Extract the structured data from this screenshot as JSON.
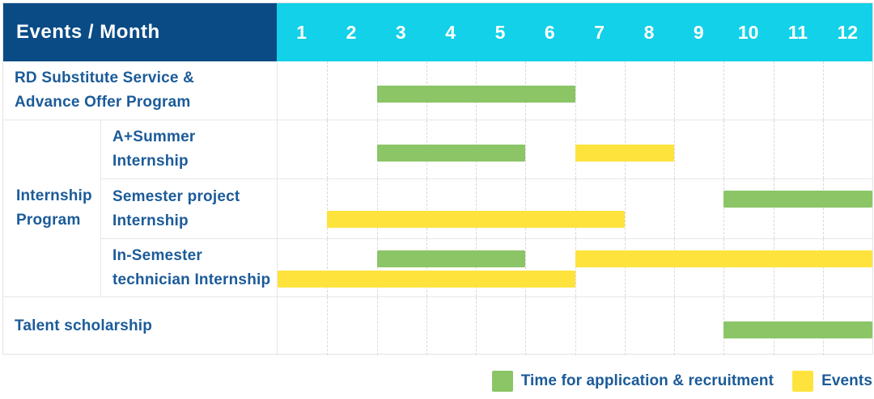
{
  "table": {
    "header_label": "Events / Month",
    "months": [
      "1",
      "2",
      "3",
      "4",
      "5",
      "6",
      "7",
      "8",
      "9",
      "10",
      "11",
      "12"
    ],
    "row_labels": {
      "rd_substitute": "RD Substitute Service &\nAdvance Offer Program",
      "internship_group": "Internship\nProgram",
      "a_plus_summer": "A+Summer\nInternship",
      "semester_project": "Semester project\nInternship",
      "in_semester_technician": "In-Semester\ntechnician Internship",
      "talent_scholarship": "Talent scholarship"
    }
  },
  "legend": {
    "application_label": "Time for application & recruitment",
    "events_label": "Events"
  },
  "colors": {
    "header_bg": "#0a4b85",
    "month_header_bg": "#12d1e8",
    "application_green": "#8bc566",
    "events_yellow": "#fee33d",
    "label_text_blue": "#1b5b99"
  },
  "chart_data": {
    "type": "gantt",
    "title": "Events / Month",
    "x_axis": {
      "unit": "month",
      "ticks": [
        1,
        2,
        3,
        4,
        5,
        6,
        7,
        8,
        9,
        10,
        11,
        12
      ],
      "range": [
        1,
        12
      ]
    },
    "legend": [
      {
        "series": "application",
        "label": "Time for application & recruitment",
        "color": "#8bc566"
      },
      {
        "series": "events",
        "label": "Events",
        "color": "#fee33d"
      }
    ],
    "rows": [
      {
        "label": "RD Substitute Service & Advance Offer Program",
        "group": null,
        "lines": 1,
        "bars": [
          {
            "series": "application",
            "start_month": 3,
            "end_month": 6,
            "line": 0
          }
        ]
      },
      {
        "label": "A+Summer Internship",
        "group": "Internship Program",
        "lines": 1,
        "bars": [
          {
            "series": "application",
            "start_month": 3,
            "end_month": 5,
            "line": 0
          },
          {
            "series": "events",
            "start_month": 7,
            "end_month": 8,
            "line": 0
          }
        ]
      },
      {
        "label": "Semester project Internship",
        "group": "Internship Program",
        "lines": 2,
        "bars": [
          {
            "series": "application",
            "start_month": 10,
            "end_month": 12,
            "line": 0
          },
          {
            "series": "events",
            "start_month": 2,
            "end_month": 7,
            "line": 1
          }
        ]
      },
      {
        "label": "In-Semester technician Internship",
        "group": "Internship Program",
        "lines": 2,
        "bars": [
          {
            "series": "application",
            "start_month": 3,
            "end_month": 5,
            "line": 0
          },
          {
            "series": "events",
            "start_month": 7,
            "end_month": 12,
            "line": 0
          },
          {
            "series": "events",
            "start_month": 1,
            "end_month": 6,
            "line": 1
          }
        ]
      },
      {
        "label": "Talent scholarship",
        "group": null,
        "lines": 1,
        "bars": [
          {
            "series": "application",
            "start_month": 10,
            "end_month": 12,
            "line": 0
          }
        ]
      }
    ]
  }
}
